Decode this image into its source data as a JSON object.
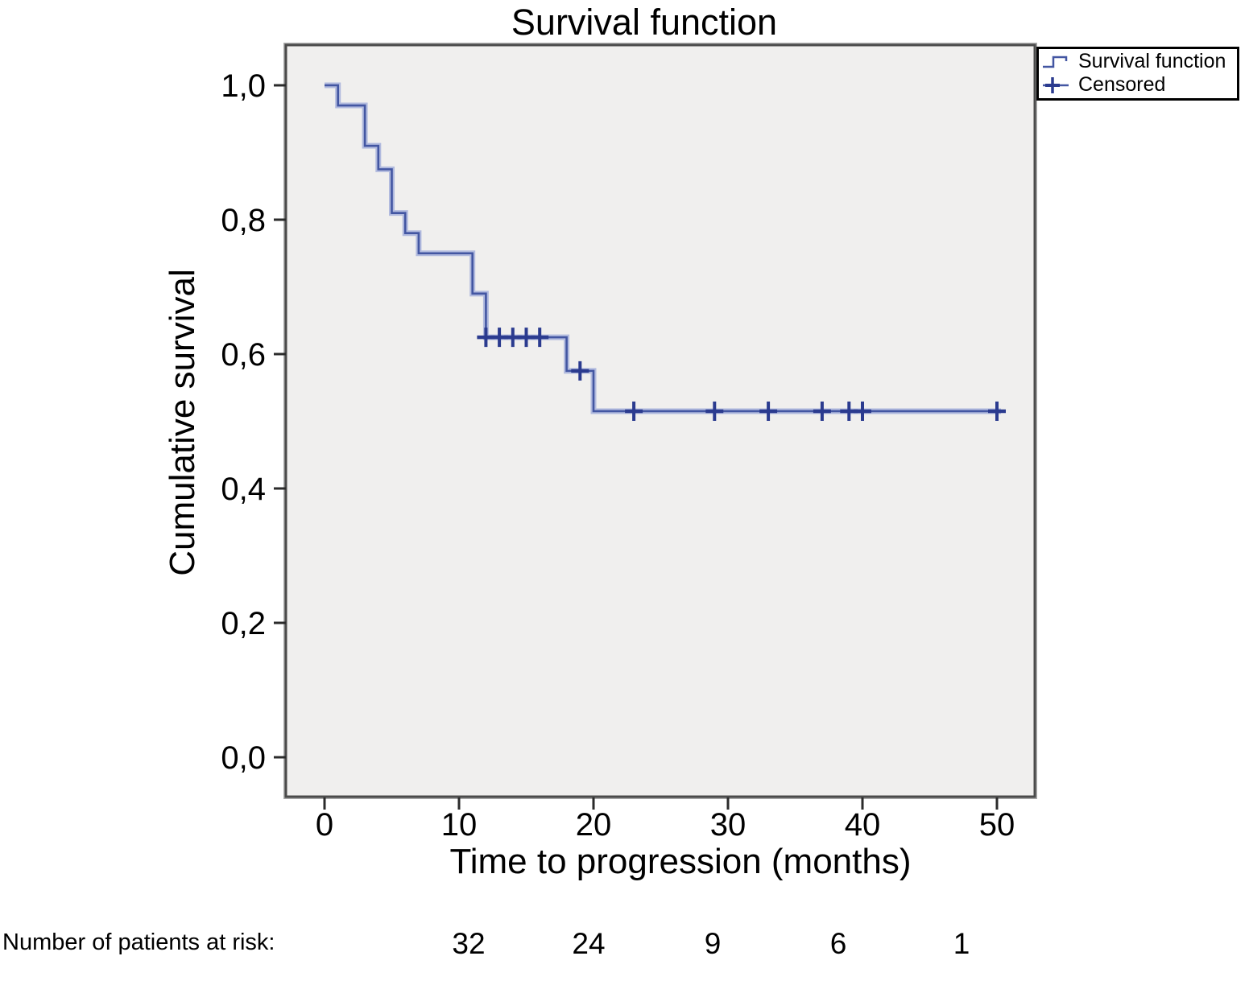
{
  "title": "Survival function",
  "y_axis": {
    "label": "Cumulative survival",
    "tick_labels": [
      "1,0",
      "0,8",
      "0,6",
      "0,4",
      "0,2",
      "0,0"
    ]
  },
  "x_axis": {
    "label": "Time to progression (months)",
    "tick_labels": [
      "0",
      "10",
      "20",
      "30",
      "40",
      "50"
    ]
  },
  "legend": {
    "items": [
      {
        "label": "Survival function",
        "symbol": "step-line"
      },
      {
        "label": "Censored",
        "symbol": "plus"
      }
    ]
  },
  "at_risk_row": {
    "label": "Number of patients at risk:",
    "values": [
      "32",
      "24",
      "9",
      "6",
      "1"
    ]
  },
  "colors": {
    "line": "#4356a2",
    "line_halo": "#b1bade",
    "censor": "#2b3b8f",
    "plot_background": "#f0efee",
    "frame": "#4b4b4b",
    "tick": "#2b2b2b"
  },
  "chart_data": {
    "type": "line",
    "subtype": "kaplan-meier-step",
    "title": "Survival function",
    "xlabel": "Time to progression (months)",
    "ylabel": "Cumulative survival",
    "xlim": [
      0,
      50
    ],
    "ylim": [
      0.0,
      1.0
    ],
    "x_ticks": [
      0,
      10,
      20,
      30,
      40,
      50
    ],
    "y_ticks": [
      1.0,
      0.8,
      0.6,
      0.4,
      0.2,
      0.0
    ],
    "grid": false,
    "legend_position": "top-right",
    "series": [
      {
        "name": "Survival function",
        "steps": [
          [
            0,
            1.0
          ],
          [
            1,
            0.97
          ],
          [
            3,
            0.91
          ],
          [
            4,
            0.875
          ],
          [
            5,
            0.81
          ],
          [
            6,
            0.78
          ],
          [
            7,
            0.75
          ],
          [
            11,
            0.69
          ],
          [
            12,
            0.625
          ],
          [
            18,
            0.575
          ],
          [
            20,
            0.515
          ]
        ],
        "end_x": 50.3
      }
    ],
    "censored_points": [
      [
        12,
        0.625
      ],
      [
        13,
        0.625
      ],
      [
        14,
        0.625
      ],
      [
        15,
        0.625
      ],
      [
        16,
        0.625
      ],
      [
        19,
        0.575
      ],
      [
        23,
        0.515
      ],
      [
        29,
        0.515
      ],
      [
        33,
        0.515
      ],
      [
        37,
        0.515
      ],
      [
        39,
        0.515
      ],
      [
        40,
        0.515
      ],
      [
        50,
        0.515
      ]
    ],
    "at_risk": {
      "label": "Number of patients at risk:",
      "times": [
        10,
        20,
        30,
        40,
        50
      ],
      "values": [
        32,
        24,
        9,
        6,
        1
      ]
    }
  }
}
